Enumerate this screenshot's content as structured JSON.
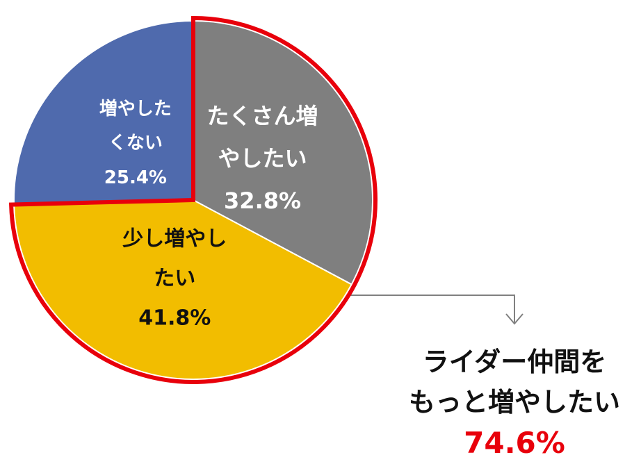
{
  "chart_data": {
    "type": "pie",
    "categories": [
      "たくさん増やしたい",
      "少し増やしたい",
      "増やしたくない"
    ],
    "values": [
      32.8,
      41.8,
      25.4
    ],
    "value_labels": [
      "32.8%",
      "41.8%",
      "25.4%"
    ],
    "colors": [
      "#7f7f7f",
      "#f2bd00",
      "#4f6aad"
    ],
    "label_colors": [
      "#ffffff",
      "#111111",
      "#ffffff"
    ],
    "highlight_color": "#e8000b",
    "annotation": {
      "lines": [
        "ライダー仲間を",
        "もっと増やしたい"
      ],
      "total": "74.6%"
    }
  }
}
